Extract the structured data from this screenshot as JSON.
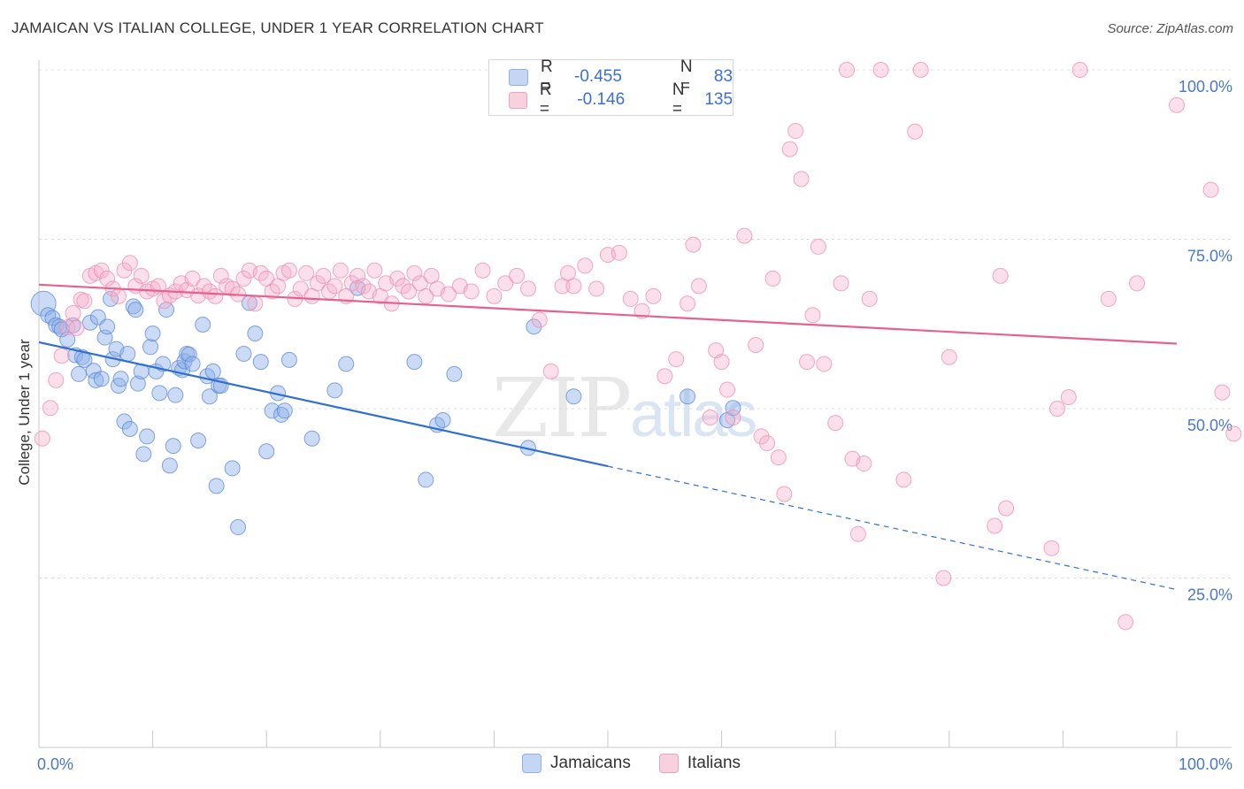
{
  "title": "JAMAICAN VS ITALIAN COLLEGE, UNDER 1 YEAR CORRELATION CHART",
  "source": "Source: ZipAtlas.com",
  "watermark": {
    "zip": "ZIP",
    "atlas": "atlas"
  },
  "legend_top": [
    {
      "r_label": "R =",
      "r_value": "-0.455",
      "n_label": "N =",
      "n_value": "83",
      "color": "#a9c4ef"
    },
    {
      "r_label": "R =",
      "r_value": "-0.146",
      "n_label": "N =",
      "n_value": "135",
      "color": "#f6b8cc"
    }
  ],
  "legend_bottom": [
    {
      "label": "Jamaicans",
      "color": "#a9c4ef"
    },
    {
      "label": "Italians",
      "color": "#f6b8cc"
    }
  ],
  "chart_data": {
    "type": "scatter",
    "title": "JAMAICAN VS ITALIAN COLLEGE, UNDER 1 YEAR CORRELATION CHART",
    "xlabel": "",
    "ylabel": "College, Under 1 year",
    "xlim": [
      0,
      100
    ],
    "ylim": [
      0,
      104
    ],
    "x_tick_labels": [
      "0.0%",
      "100.0%"
    ],
    "y_ticks": [
      25,
      50,
      75,
      100
    ],
    "y_tick_labels": [
      "25.0%",
      "50.0%",
      "75.0%",
      "100.0%"
    ],
    "grid": true,
    "legend_position": "top-center",
    "series": [
      {
        "name": "Jamaicans",
        "color": "#6f9ee6",
        "trend": {
          "x": [
            0,
            50
          ],
          "y": [
            59.8,
            41.5
          ],
          "dashed_to": [
            100,
            23.3
          ],
          "color": "#2f6fd4"
        },
        "points": [
          [
            0.4,
            65.5
          ],
          [
            0.8,
            63.8
          ],
          [
            1.2,
            63.4
          ],
          [
            1.5,
            62.3
          ],
          [
            1.8,
            62.1
          ],
          [
            2.0,
            61.7
          ],
          [
            2.5,
            60.2
          ],
          [
            3.0,
            62.3
          ],
          [
            3.2,
            57.9
          ],
          [
            3.5,
            55.1
          ],
          [
            3.8,
            57.6
          ],
          [
            4.0,
            57.2
          ],
          [
            4.5,
            62.7
          ],
          [
            4.8,
            55.6
          ],
          [
            5.0,
            54.2
          ],
          [
            5.2,
            63.5
          ],
          [
            5.5,
            54.4
          ],
          [
            5.8,
            60.5
          ],
          [
            6.0,
            62.1
          ],
          [
            6.3,
            66.2
          ],
          [
            6.5,
            57.3
          ],
          [
            6.8,
            58.8
          ],
          [
            7.0,
            53.4
          ],
          [
            7.2,
            54.4
          ],
          [
            7.5,
            48.1
          ],
          [
            7.8,
            58.1
          ],
          [
            8.0,
            47.0
          ],
          [
            8.3,
            65.1
          ],
          [
            8.5,
            64.6
          ],
          [
            8.7,
            53.7
          ],
          [
            9.0,
            55.5
          ],
          [
            9.2,
            43.3
          ],
          [
            9.5,
            45.9
          ],
          [
            9.8,
            59.1
          ],
          [
            10.0,
            61.1
          ],
          [
            10.3,
            55.5
          ],
          [
            10.6,
            52.3
          ],
          [
            10.9,
            56.6
          ],
          [
            11.2,
            64.6
          ],
          [
            11.5,
            41.6
          ],
          [
            11.8,
            44.5
          ],
          [
            12.0,
            52.0
          ],
          [
            12.3,
            56.0
          ],
          [
            12.6,
            55.7
          ],
          [
            12.8,
            57.0
          ],
          [
            13.0,
            58.1
          ],
          [
            13.2,
            58.0
          ],
          [
            13.5,
            56.6
          ],
          [
            14.0,
            45.3
          ],
          [
            14.4,
            62.4
          ],
          [
            14.8,
            54.8
          ],
          [
            15.0,
            51.8
          ],
          [
            15.3,
            55.5
          ],
          [
            15.6,
            38.6
          ],
          [
            15.8,
            53.4
          ],
          [
            16.0,
            53.4
          ],
          [
            17.0,
            41.2
          ],
          [
            17.5,
            32.5
          ],
          [
            18.0,
            58.1
          ],
          [
            18.5,
            65.6
          ],
          [
            19.0,
            61.1
          ],
          [
            19.5,
            56.9
          ],
          [
            20.0,
            43.7
          ],
          [
            20.5,
            49.7
          ],
          [
            21.0,
            52.3
          ],
          [
            21.3,
            49.1
          ],
          [
            21.6,
            49.7
          ],
          [
            22.0,
            57.2
          ],
          [
            24.0,
            45.6
          ],
          [
            26.0,
            52.7
          ],
          [
            27.0,
            56.6
          ],
          [
            28.0,
            67.8
          ],
          [
            33.0,
            56.9
          ],
          [
            34.0,
            39.5
          ],
          [
            35.0,
            47.6
          ],
          [
            35.5,
            48.3
          ],
          [
            36.5,
            55.1
          ],
          [
            43.0,
            44.2
          ],
          [
            43.5,
            62.1
          ],
          [
            47.0,
            51.8
          ],
          [
            57.0,
            51.8
          ],
          [
            60.5,
            48.3
          ],
          [
            61.0,
            50.1
          ]
        ]
      },
      {
        "name": "Italians",
        "color": "#f48fb1",
        "trend": {
          "x": [
            0,
            100
          ],
          "y": [
            68.3,
            59.6
          ],
          "color": "#e8618c"
        },
        "points": [
          [
            0.3,
            45.6
          ],
          [
            1.0,
            50.1
          ],
          [
            1.5,
            54.2
          ],
          [
            2.0,
            57.8
          ],
          [
            2.5,
            62.0
          ],
          [
            3.0,
            64.1
          ],
          [
            3.3,
            61.9
          ],
          [
            3.7,
            66.1
          ],
          [
            4.0,
            65.9
          ],
          [
            4.5,
            69.6
          ],
          [
            5.0,
            70.0
          ],
          [
            5.5,
            70.4
          ],
          [
            6.0,
            69.2
          ],
          [
            6.5,
            67.7
          ],
          [
            7.0,
            66.6
          ],
          [
            7.5,
            70.4
          ],
          [
            8.0,
            71.5
          ],
          [
            8.5,
            68.1
          ],
          [
            9.0,
            69.6
          ],
          [
            9.5,
            67.3
          ],
          [
            10.0,
            67.7
          ],
          [
            10.5,
            68.1
          ],
          [
            11.0,
            65.9
          ],
          [
            11.5,
            66.7
          ],
          [
            12.0,
            67.3
          ],
          [
            12.5,
            68.5
          ],
          [
            13.0,
            67.5
          ],
          [
            13.5,
            69.2
          ],
          [
            14.0,
            66.7
          ],
          [
            14.5,
            68.1
          ],
          [
            15.0,
            67.3
          ],
          [
            15.5,
            66.6
          ],
          [
            16.0,
            69.6
          ],
          [
            16.5,
            68.1
          ],
          [
            17.0,
            67.7
          ],
          [
            17.5,
            66.9
          ],
          [
            18.0,
            69.2
          ],
          [
            18.5,
            70.4
          ],
          [
            19.0,
            65.5
          ],
          [
            19.5,
            70.0
          ],
          [
            20.0,
            69.2
          ],
          [
            20.5,
            67.3
          ],
          [
            21.0,
            68.1
          ],
          [
            21.5,
            70.0
          ],
          [
            22.0,
            70.4
          ],
          [
            22.5,
            66.2
          ],
          [
            23.0,
            67.7
          ],
          [
            23.5,
            70.0
          ],
          [
            24.0,
            66.6
          ],
          [
            24.5,
            68.5
          ],
          [
            25.0,
            69.6
          ],
          [
            25.5,
            67.3
          ],
          [
            26.0,
            68.1
          ],
          [
            26.5,
            70.4
          ],
          [
            27.0,
            66.6
          ],
          [
            27.5,
            68.5
          ],
          [
            28.0,
            69.6
          ],
          [
            28.5,
            68.1
          ],
          [
            29.0,
            67.3
          ],
          [
            29.5,
            70.4
          ],
          [
            30.0,
            66.6
          ],
          [
            30.5,
            68.5
          ],
          [
            31.0,
            65.5
          ],
          [
            31.5,
            69.2
          ],
          [
            32.0,
            68.1
          ],
          [
            32.5,
            67.3
          ],
          [
            33.0,
            70.0
          ],
          [
            33.5,
            68.5
          ],
          [
            34.0,
            66.6
          ],
          [
            34.5,
            69.6
          ],
          [
            35.0,
            67.7
          ],
          [
            36.0,
            66.9
          ],
          [
            37.0,
            68.1
          ],
          [
            38.0,
            67.3
          ],
          [
            39.0,
            70.4
          ],
          [
            40.0,
            66.6
          ],
          [
            41.0,
            68.5
          ],
          [
            42.0,
            69.6
          ],
          [
            43.0,
            67.7
          ],
          [
            44.0,
            63.1
          ],
          [
            45.0,
            55.5
          ],
          [
            46.0,
            68.1
          ],
          [
            46.5,
            70.0
          ],
          [
            47.0,
            68.1
          ],
          [
            48.0,
            71.1
          ],
          [
            49.0,
            67.7
          ],
          [
            50.0,
            72.7
          ],
          [
            51.0,
            73.0
          ],
          [
            52.0,
            66.2
          ],
          [
            53.0,
            64.4
          ],
          [
            54.0,
            66.6
          ],
          [
            55.0,
            54.8
          ],
          [
            56.0,
            57.3
          ],
          [
            57.0,
            65.5
          ],
          [
            57.5,
            74.2
          ],
          [
            58.0,
            68.1
          ],
          [
            59.0,
            48.7
          ],
          [
            59.5,
            58.6
          ],
          [
            60.0,
            56.9
          ],
          [
            60.5,
            52.8
          ],
          [
            61.0,
            48.7
          ],
          [
            62.0,
            75.5
          ],
          [
            63.0,
            59.4
          ],
          [
            63.5,
            45.9
          ],
          [
            64.0,
            44.9
          ],
          [
            64.5,
            69.2
          ],
          [
            65.0,
            42.8
          ],
          [
            65.5,
            37.4
          ],
          [
            66.0,
            88.3
          ],
          [
            66.5,
            91.0
          ],
          [
            67.0,
            83.9
          ],
          [
            67.5,
            56.9
          ],
          [
            68.0,
            63.8
          ],
          [
            68.5,
            73.9
          ],
          [
            69.0,
            56.6
          ],
          [
            70.0,
            47.9
          ],
          [
            70.5,
            68.5
          ],
          [
            71.0,
            100.0
          ],
          [
            71.5,
            42.6
          ],
          [
            72.0,
            31.5
          ],
          [
            72.5,
            41.9
          ],
          [
            73.0,
            66.2
          ],
          [
            74.0,
            100.0
          ],
          [
            76.0,
            39.5
          ],
          [
            77.0,
            90.9
          ],
          [
            77.5,
            100.0
          ],
          [
            79.5,
            25.0
          ],
          [
            80.0,
            57.6
          ],
          [
            84.0,
            32.7
          ],
          [
            84.5,
            69.6
          ],
          [
            85.0,
            35.3
          ],
          [
            89.0,
            29.4
          ],
          [
            89.5,
            50.0
          ],
          [
            90.5,
            51.7
          ],
          [
            91.5,
            100.0
          ],
          [
            94.0,
            66.2
          ],
          [
            95.5,
            18.5
          ],
          [
            96.5,
            68.5
          ],
          [
            100.0,
            94.8
          ],
          [
            103.0,
            82.3
          ],
          [
            104.0,
            52.4
          ],
          [
            105.0,
            46.3
          ]
        ]
      }
    ]
  }
}
